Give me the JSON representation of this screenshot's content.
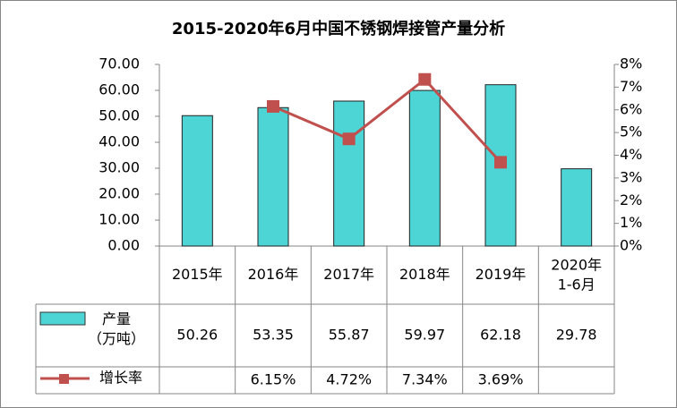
{
  "chart_data": {
    "type": "bar-line-table",
    "title": "2015-2020年6月中国不锈钢焊接管产量分析",
    "categories": [
      "2015年",
      "2016年",
      "2017年",
      "2018年",
      "2019年",
      "2020年\n1-6月"
    ],
    "series": [
      {
        "name": "产量\n（万吨）",
        "type": "bar",
        "color": "#4dd4d4",
        "values": [
          50.26,
          53.35,
          55.87,
          59.97,
          62.18,
          29.78
        ]
      },
      {
        "name": "增长率",
        "type": "line",
        "axis": "y2",
        "color": "#c0504d",
        "values": [
          null,
          6.15,
          4.72,
          7.34,
          3.69,
          null
        ],
        "value_labels": [
          null,
          "6.15%",
          "4.72%",
          "7.34%",
          "3.69%",
          null
        ]
      }
    ],
    "ylim": [
      0,
      70
    ],
    "yticks": [
      {
        "value": 0,
        "label": "0.00"
      },
      {
        "value": 10,
        "label": "10.00"
      },
      {
        "value": 20,
        "label": "20.00"
      },
      {
        "value": 30,
        "label": "30.00"
      },
      {
        "value": 40,
        "label": "40.00"
      },
      {
        "value": 50,
        "label": "50.00"
      },
      {
        "value": 60,
        "label": "60.00"
      },
      {
        "value": 70,
        "label": "70.00"
      }
    ],
    "y2lim": [
      0,
      8
    ],
    "y2ticks": [
      {
        "value": 0,
        "label": "0%"
      },
      {
        "value": 1,
        "label": "1%"
      },
      {
        "value": 2,
        "label": "2%"
      },
      {
        "value": 3,
        "label": "3%"
      },
      {
        "value": 4,
        "label": "4%"
      },
      {
        "value": 5,
        "label": "5%"
      },
      {
        "value": 6,
        "label": "6%"
      },
      {
        "value": 7,
        "label": "7%"
      },
      {
        "value": 8,
        "label": "8%"
      }
    ],
    "grid": false
  }
}
